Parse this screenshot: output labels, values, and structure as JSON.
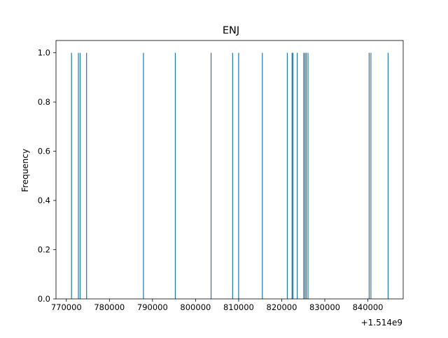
{
  "chart_data": {
    "type": "bar",
    "title": "ENJ",
    "xlabel": "",
    "ylabel": "Frequency",
    "x_offset_label": "+1.514e9",
    "x_tick_values": [
      770000,
      780000,
      790000,
      800000,
      810000,
      820000,
      830000,
      840000
    ],
    "x_tick_labels": [
      "770000",
      "780000",
      "790000",
      "800000",
      "810000",
      "820000",
      "830000",
      "840000"
    ],
    "y_tick_values": [
      0.0,
      0.2,
      0.4,
      0.6,
      0.8,
      1.0
    ],
    "y_tick_labels": [
      "0.0",
      "0.2",
      "0.4",
      "0.6",
      "0.8",
      "1.0"
    ],
    "xlim": [
      767600,
      848200
    ],
    "ylim": [
      0,
      1.05
    ],
    "x_units_note": "",
    "bar_color": "#1f77b4",
    "grid": false,
    "series": [
      {
        "x": [
          771200,
          772800,
          773200,
          774700,
          787900,
          795300,
          803600,
          808600,
          810000,
          815500,
          821300,
          822400,
          822600,
          823600,
          825100,
          825400,
          825700,
          826100,
          840300,
          840700,
          844700
        ],
        "values": [
          1,
          1,
          1,
          1,
          1,
          1,
          1,
          1,
          1,
          1,
          1,
          1,
          1,
          1,
          1,
          1,
          1,
          1,
          1,
          1,
          1
        ]
      }
    ]
  }
}
